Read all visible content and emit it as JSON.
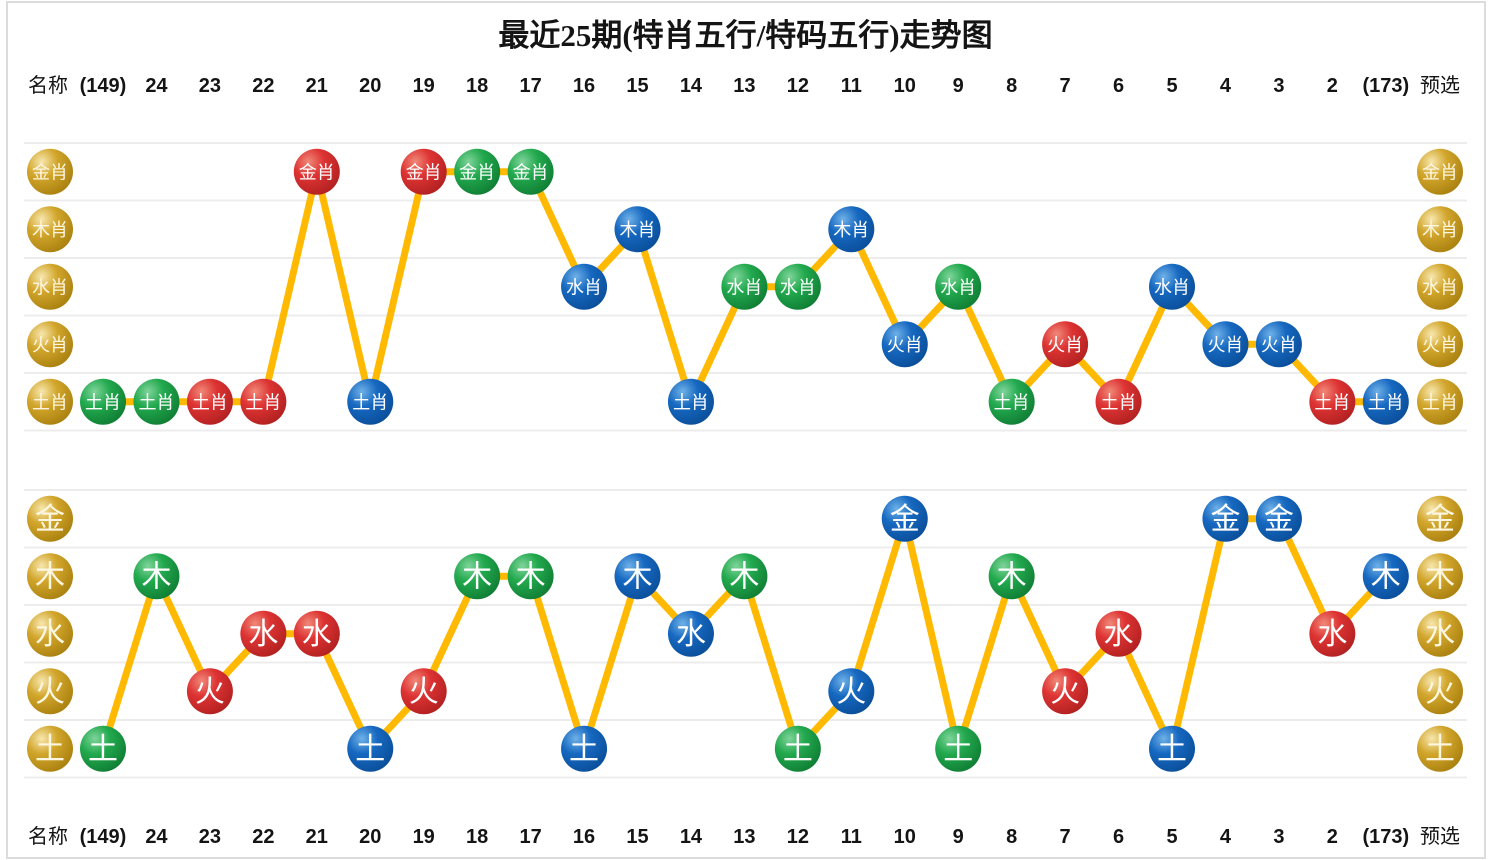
{
  "title": "最近25期(特肖五行/特码五行)走势图",
  "header": {
    "name_label": "名称",
    "preselect_label": "预选",
    "columns": [
      "(149)",
      "24",
      "23",
      "22",
      "21",
      "20",
      "19",
      "18",
      "17",
      "16",
      "15",
      "14",
      "13",
      "12",
      "11",
      "10",
      "9",
      "8",
      "7",
      "6",
      "5",
      "4",
      "3",
      "2",
      "(173)"
    ]
  },
  "footer": {
    "name_label": "名称",
    "preselect_label": "预选"
  },
  "colors": {
    "point_red": "#d63030",
    "point_green": "#1fa24a",
    "point_blue": "#1268bd",
    "axis_gold": "#c9971d",
    "trend_line": "#ffb900",
    "gridline": "#ececec",
    "text": "#141414",
    "circle_text": "#ffffff"
  },
  "chart_data": [
    {
      "type": "line",
      "title": "特肖五行",
      "rows": [
        "金肖",
        "木肖",
        "水肖",
        "火肖",
        "土肖"
      ],
      "categories": [
        "(149)",
        "24",
        "23",
        "22",
        "21",
        "20",
        "19",
        "18",
        "17",
        "16",
        "15",
        "14",
        "13",
        "12",
        "11",
        "10",
        "9",
        "8",
        "7",
        "6",
        "5",
        "4",
        "3",
        "2",
        "(173)"
      ],
      "legend_left": [
        "金肖",
        "木肖",
        "水肖",
        "火肖",
        "土肖"
      ],
      "legend_right": [
        "金肖",
        "木肖",
        "水肖",
        "火肖",
        "土肖"
      ],
      "grid": true,
      "points": [
        {
          "col": "(149)",
          "value": "土肖",
          "color": "green"
        },
        {
          "col": "24",
          "value": "土肖",
          "color": "green"
        },
        {
          "col": "23",
          "value": "土肖",
          "color": "red"
        },
        {
          "col": "22",
          "value": "土肖",
          "color": "red"
        },
        {
          "col": "21",
          "value": "金肖",
          "color": "red"
        },
        {
          "col": "20",
          "value": "土肖",
          "color": "blue"
        },
        {
          "col": "19",
          "value": "金肖",
          "color": "red"
        },
        {
          "col": "18",
          "value": "金肖",
          "color": "green"
        },
        {
          "col": "17",
          "value": "金肖",
          "color": "green"
        },
        {
          "col": "16",
          "value": "水肖",
          "color": "blue"
        },
        {
          "col": "15",
          "value": "木肖",
          "color": "blue"
        },
        {
          "col": "14",
          "value": "土肖",
          "color": "blue"
        },
        {
          "col": "13",
          "value": "水肖",
          "color": "green"
        },
        {
          "col": "12",
          "value": "水肖",
          "color": "green"
        },
        {
          "col": "11",
          "value": "木肖",
          "color": "blue"
        },
        {
          "col": "10",
          "value": "火肖",
          "color": "blue"
        },
        {
          "col": "9",
          "value": "水肖",
          "color": "green"
        },
        {
          "col": "8",
          "value": "土肖",
          "color": "green"
        },
        {
          "col": "7",
          "value": "火肖",
          "color": "red"
        },
        {
          "col": "6",
          "value": "土肖",
          "color": "red"
        },
        {
          "col": "5",
          "value": "水肖",
          "color": "blue"
        },
        {
          "col": "4",
          "value": "火肖",
          "color": "blue"
        },
        {
          "col": "3",
          "value": "火肖",
          "color": "blue"
        },
        {
          "col": "2",
          "value": "土肖",
          "color": "red"
        },
        {
          "col": "(173)",
          "value": "土肖",
          "color": "blue"
        }
      ]
    },
    {
      "type": "line",
      "title": "特码五行",
      "rows": [
        "金",
        "木",
        "水",
        "火",
        "土"
      ],
      "categories": [
        "(149)",
        "24",
        "23",
        "22",
        "21",
        "20",
        "19",
        "18",
        "17",
        "16",
        "15",
        "14",
        "13",
        "12",
        "11",
        "10",
        "9",
        "8",
        "7",
        "6",
        "5",
        "4",
        "3",
        "2",
        "(173)"
      ],
      "legend_left": [
        "金",
        "木",
        "水",
        "火",
        "土"
      ],
      "legend_right": [
        "金",
        "木",
        "水",
        "火",
        "土"
      ],
      "grid": true,
      "points": [
        {
          "col": "(149)",
          "value": "土",
          "color": "green"
        },
        {
          "col": "24",
          "value": "木",
          "color": "green"
        },
        {
          "col": "23",
          "value": "火",
          "color": "red"
        },
        {
          "col": "22",
          "value": "水",
          "color": "red"
        },
        {
          "col": "21",
          "value": "水",
          "color": "red"
        },
        {
          "col": "20",
          "value": "土",
          "color": "blue"
        },
        {
          "col": "19",
          "value": "火",
          "color": "red"
        },
        {
          "col": "18",
          "value": "木",
          "color": "green"
        },
        {
          "col": "17",
          "value": "木",
          "color": "green"
        },
        {
          "col": "16",
          "value": "土",
          "color": "blue"
        },
        {
          "col": "15",
          "value": "木",
          "color": "blue"
        },
        {
          "col": "14",
          "value": "水",
          "color": "blue"
        },
        {
          "col": "13",
          "value": "木",
          "color": "green"
        },
        {
          "col": "12",
          "value": "土",
          "color": "green"
        },
        {
          "col": "11",
          "value": "火",
          "color": "blue"
        },
        {
          "col": "10",
          "value": "金",
          "color": "blue"
        },
        {
          "col": "9",
          "value": "土",
          "color": "green"
        },
        {
          "col": "8",
          "value": "木",
          "color": "green"
        },
        {
          "col": "7",
          "value": "火",
          "color": "red"
        },
        {
          "col": "6",
          "value": "水",
          "color": "red"
        },
        {
          "col": "5",
          "value": "土",
          "color": "blue"
        },
        {
          "col": "4",
          "value": "金",
          "color": "blue"
        },
        {
          "col": "3",
          "value": "金",
          "color": "blue"
        },
        {
          "col": "2",
          "value": "水",
          "color": "red"
        },
        {
          "col": "(173)",
          "value": "木",
          "color": "blue"
        }
      ]
    }
  ]
}
